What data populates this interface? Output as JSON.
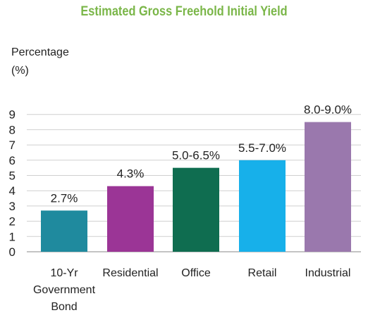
{
  "chart_data": {
    "type": "bar",
    "title": "Estimated Gross Freehold Initial Yield",
    "ylabel_lines": [
      "Percentage",
      "(%)"
    ],
    "categories": [
      [
        "10-Yr",
        "Government",
        "Bond"
      ],
      [
        "Residential"
      ],
      [
        "Office"
      ],
      [
        "Retail"
      ],
      [
        "Industrial"
      ]
    ],
    "values": [
      2.7,
      4.3,
      5.5,
      6.0,
      8.5
    ],
    "data_labels": [
      "2.7%",
      "4.3%",
      "5.0-6.5%",
      "5.5-7.0%",
      "8.0-9.0%"
    ],
    "bar_colors": [
      "#1f8a9e",
      "#9b3596",
      "#0f6d50",
      "#17b0ea",
      "#9a78ad"
    ],
    "title_color": "#7ab648",
    "yticks": [
      "0",
      "1",
      "2",
      "3",
      "4",
      "5",
      "6",
      "7",
      "8",
      "9"
    ],
    "ylim": [
      0,
      9
    ],
    "grid": true
  }
}
